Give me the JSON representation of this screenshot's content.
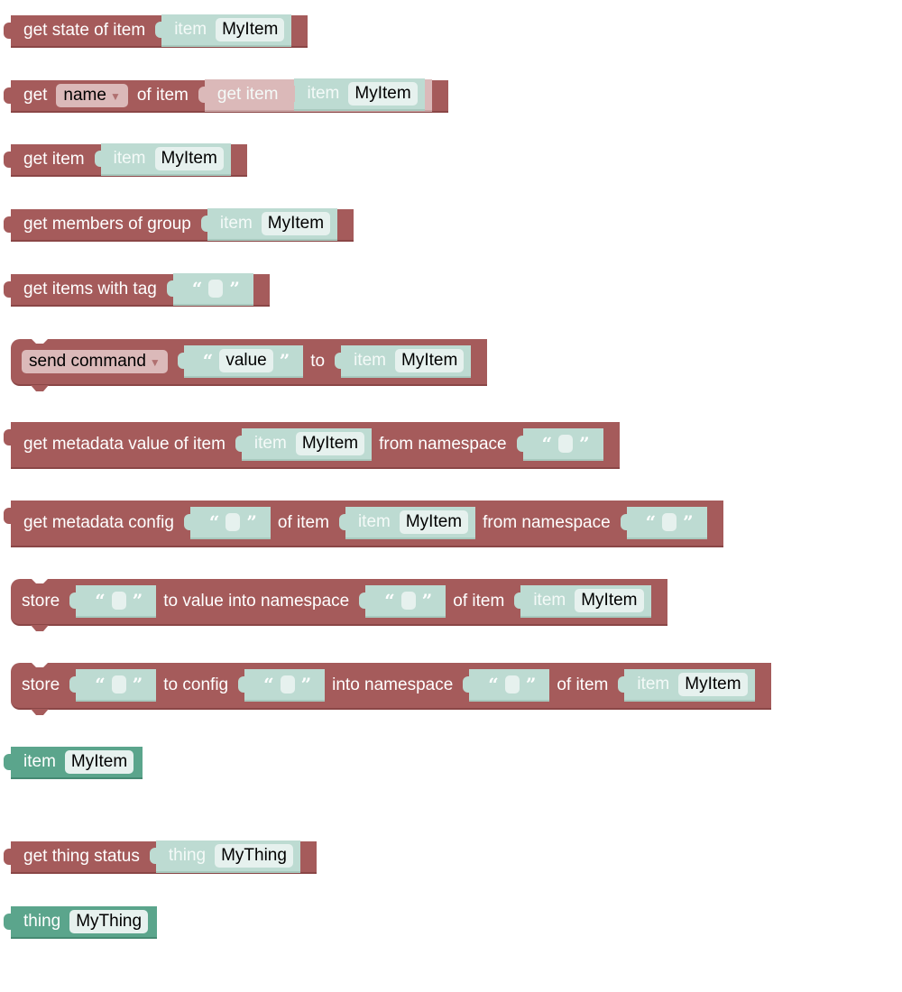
{
  "colors": {
    "block": "#a55b5b",
    "value_input": "#bddbd2",
    "item_block": "#5ba58c",
    "field": "#e6f1ee"
  },
  "blocks": [
    {
      "color": "red",
      "parts": [
        {
          "t": "label",
          "v": "get state of item"
        },
        {
          "t": "input",
          "block": {
            "color": "teal",
            "parts": [
              {
                "t": "label",
                "v": "item",
                "light": true
              },
              {
                "t": "field",
                "v": "MyItem"
              }
            ]
          }
        }
      ]
    },
    {
      "color": "red",
      "parts": [
        {
          "t": "label",
          "v": "get"
        },
        {
          "t": "dropdown",
          "v": "name"
        },
        {
          "t": "label",
          "v": "of item"
        },
        {
          "t": "input",
          "block": {
            "color": "pale",
            "parts": [
              {
                "t": "label",
                "v": "get item",
                "light": true
              },
              {
                "t": "input",
                "block": {
                  "color": "teal",
                  "parts": [
                    {
                      "t": "label",
                      "v": "item",
                      "light": true
                    },
                    {
                      "t": "field",
                      "v": "MyItem"
                    }
                  ]
                }
              }
            ]
          }
        }
      ]
    },
    {
      "color": "red",
      "parts": [
        {
          "t": "label",
          "v": "get item"
        },
        {
          "t": "input",
          "block": {
            "color": "teal",
            "parts": [
              {
                "t": "label",
                "v": "item",
                "light": true
              },
              {
                "t": "field",
                "v": "MyItem"
              }
            ]
          }
        }
      ]
    },
    {
      "color": "red",
      "parts": [
        {
          "t": "label",
          "v": "get members of group"
        },
        {
          "t": "input",
          "block": {
            "color": "teal",
            "parts": [
              {
                "t": "label",
                "v": "item",
                "light": true
              },
              {
                "t": "field",
                "v": "MyItem"
              }
            ]
          }
        }
      ]
    },
    {
      "color": "red",
      "parts": [
        {
          "t": "label",
          "v": "get items with tag"
        },
        {
          "t": "input",
          "block": {
            "color": "teal",
            "text": true,
            "parts": [
              {
                "t": "field",
                "v": ""
              }
            ]
          }
        }
      ]
    },
    {
      "color": "red",
      "stmt": true,
      "parts": [
        {
          "t": "dropdown",
          "v": "send command"
        },
        {
          "t": "input",
          "block": {
            "color": "teal",
            "text": true,
            "parts": [
              {
                "t": "field",
                "v": "value"
              }
            ]
          }
        },
        {
          "t": "label",
          "v": "to"
        },
        {
          "t": "input",
          "block": {
            "color": "teal",
            "parts": [
              {
                "t": "label",
                "v": "item",
                "light": true
              },
              {
                "t": "field",
                "v": "MyItem"
              }
            ]
          }
        }
      ]
    },
    {
      "color": "red",
      "tall": true,
      "parts": [
        {
          "t": "label",
          "v": "get metadata value of item"
        },
        {
          "t": "input",
          "block": {
            "color": "teal",
            "parts": [
              {
                "t": "label",
                "v": "item",
                "light": true
              },
              {
                "t": "field",
                "v": "MyItem"
              }
            ]
          }
        },
        {
          "t": "label",
          "v": "from namespace"
        },
        {
          "t": "input",
          "block": {
            "color": "teal",
            "text": true,
            "parts": [
              {
                "t": "field",
                "v": ""
              }
            ]
          }
        }
      ]
    },
    {
      "color": "red",
      "tall": true,
      "parts": [
        {
          "t": "label",
          "v": "get metadata config"
        },
        {
          "t": "input",
          "block": {
            "color": "teal",
            "text": true,
            "parts": [
              {
                "t": "field",
                "v": ""
              }
            ]
          }
        },
        {
          "t": "label",
          "v": "of item"
        },
        {
          "t": "input",
          "block": {
            "color": "teal",
            "parts": [
              {
                "t": "label",
                "v": "item",
                "light": true
              },
              {
                "t": "field",
                "v": "MyItem"
              }
            ]
          }
        },
        {
          "t": "label",
          "v": "from namespace"
        },
        {
          "t": "input",
          "block": {
            "color": "teal",
            "text": true,
            "parts": [
              {
                "t": "field",
                "v": ""
              }
            ]
          }
        }
      ]
    },
    {
      "color": "red",
      "stmt": true,
      "parts": [
        {
          "t": "label",
          "v": "store"
        },
        {
          "t": "input",
          "block": {
            "color": "teal",
            "text": true,
            "parts": [
              {
                "t": "field",
                "v": ""
              }
            ]
          }
        },
        {
          "t": "label",
          "v": "to value into namespace"
        },
        {
          "t": "input",
          "block": {
            "color": "teal",
            "text": true,
            "parts": [
              {
                "t": "field",
                "v": ""
              }
            ]
          }
        },
        {
          "t": "label",
          "v": "of item"
        },
        {
          "t": "input",
          "block": {
            "color": "teal",
            "parts": [
              {
                "t": "label",
                "v": "item",
                "light": true
              },
              {
                "t": "field",
                "v": "MyItem"
              }
            ]
          }
        }
      ]
    },
    {
      "color": "red",
      "stmt": true,
      "parts": [
        {
          "t": "label",
          "v": "store"
        },
        {
          "t": "input",
          "block": {
            "color": "teal",
            "text": true,
            "parts": [
              {
                "t": "field",
                "v": ""
              }
            ]
          }
        },
        {
          "t": "label",
          "v": "to config"
        },
        {
          "t": "input",
          "block": {
            "color": "teal",
            "text": true,
            "parts": [
              {
                "t": "field",
                "v": ""
              }
            ]
          }
        },
        {
          "t": "label",
          "v": "into namespace"
        },
        {
          "t": "input",
          "block": {
            "color": "teal",
            "text": true,
            "parts": [
              {
                "t": "field",
                "v": ""
              }
            ]
          }
        },
        {
          "t": "label",
          "v": "of item"
        },
        {
          "t": "input",
          "block": {
            "color": "teal",
            "parts": [
              {
                "t": "label",
                "v": "item",
                "light": true
              },
              {
                "t": "field",
                "v": "MyItem"
              }
            ]
          }
        }
      ]
    },
    {
      "color": "green",
      "parts": [
        {
          "t": "label",
          "v": "item"
        },
        {
          "t": "field",
          "v": "MyItem"
        }
      ]
    },
    {
      "color": "red",
      "parts": [
        {
          "t": "label",
          "v": "get thing status"
        },
        {
          "t": "input",
          "block": {
            "color": "teal",
            "parts": [
              {
                "t": "label",
                "v": "thing",
                "light": true
              },
              {
                "t": "field",
                "v": "MyThing"
              }
            ]
          }
        }
      ]
    },
    {
      "color": "green",
      "parts": [
        {
          "t": "label",
          "v": "thing"
        },
        {
          "t": "field",
          "v": "MyThing"
        }
      ]
    }
  ]
}
